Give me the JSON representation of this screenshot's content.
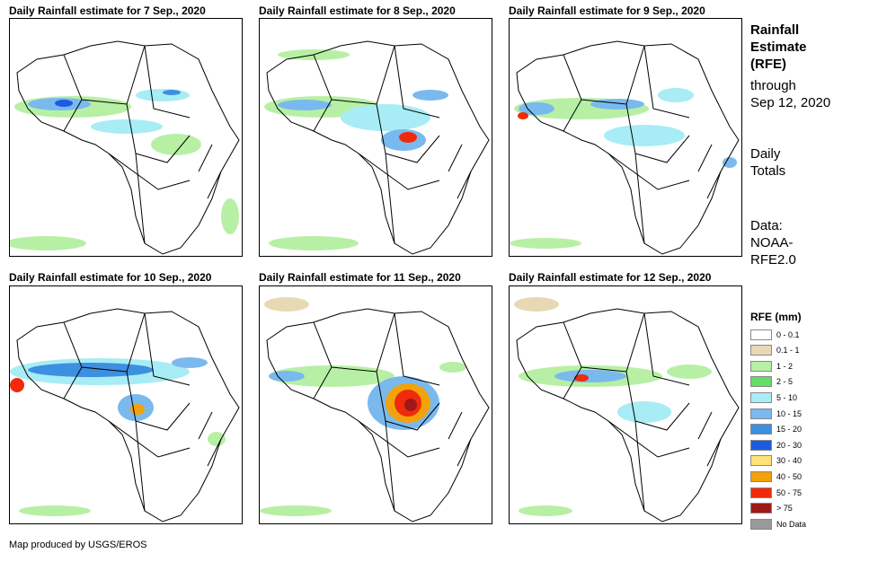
{
  "panels": [
    {
      "title": "Daily Rainfall estimate for 7 Sep., 2020"
    },
    {
      "title": "Daily Rainfall estimate for 8 Sep., 2020"
    },
    {
      "title": "Daily Rainfall estimate for 9 Sep., 2020"
    },
    {
      "title": "Daily Rainfall estimate for 10 Sep., 2020"
    },
    {
      "title": "Daily Rainfall estimate for 11 Sep., 2020"
    },
    {
      "title": "Daily Rainfall estimate for 12 Sep., 2020"
    }
  ],
  "side": {
    "title_lines": [
      "Rainfall",
      "Estimate",
      "(RFE)"
    ],
    "through_lines": [
      "through",
      "Sep 12, 2020"
    ],
    "daily_lines": [
      "Daily",
      "Totals"
    ],
    "data_lines": [
      "Data:",
      "NOAA-",
      "RFE2.0"
    ]
  },
  "legend": {
    "title": "RFE (mm)",
    "items": [
      {
        "label": "0 - 0.1",
        "color": "#ffffff"
      },
      {
        "label": "0.1 - 1",
        "color": "#e8d9b5"
      },
      {
        "label": "1 - 2",
        "color": "#b7f0a5"
      },
      {
        "label": "2 - 5",
        "color": "#66dd66"
      },
      {
        "label": "5 - 10",
        "color": "#a8ecf5"
      },
      {
        "label": "10 - 15",
        "color": "#7ab9ee"
      },
      {
        "label": "15 - 20",
        "color": "#3d8fe0"
      },
      {
        "label": "20 - 30",
        "color": "#1f5bdf"
      },
      {
        "label": "30 - 40",
        "color": "#ffe27a"
      },
      {
        "label": "40 - 50",
        "color": "#f2a20a"
      },
      {
        "label": "50 - 75",
        "color": "#f02a0a"
      },
      {
        "label": "> 75",
        "color": "#a01818"
      },
      {
        "label": "No Data",
        "color": "#999999"
      }
    ]
  },
  "credit": "Map produced by USGS/EROS"
}
